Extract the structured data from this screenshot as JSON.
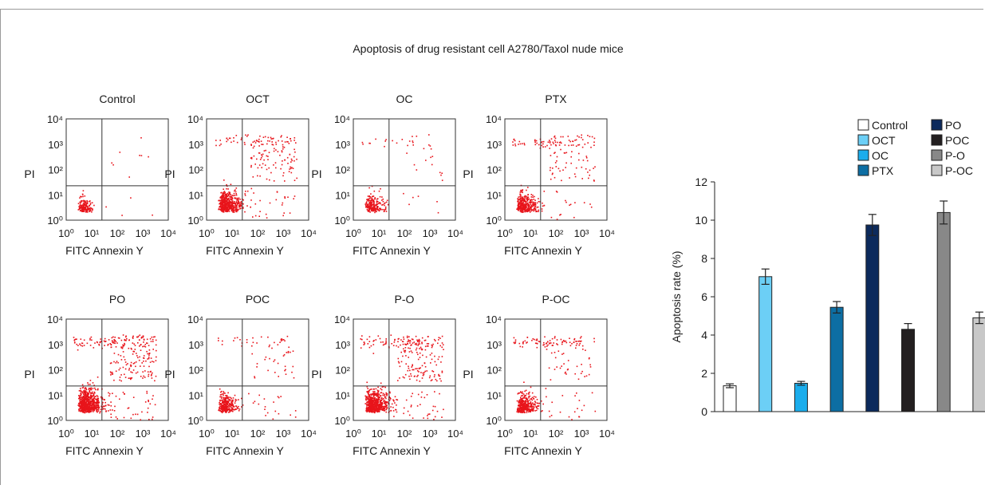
{
  "figure": {
    "title": "Apoptosis of drug resistant cell A2780/Taxol nude mice"
  },
  "flow_panels": {
    "x_axis_label": "FITC Annexin Y",
    "y_axis_label": "PI",
    "tick_labels": [
      "10⁰",
      "10¹",
      "10²",
      "10³",
      "10⁴"
    ],
    "point_color": "#e8141b",
    "panels": [
      {
        "title": "Control"
      },
      {
        "title": "OCT"
      },
      {
        "title": "OC"
      },
      {
        "title": "PTX"
      },
      {
        "title": "PO"
      },
      {
        "title": "POC"
      },
      {
        "title": "P-O"
      },
      {
        "title": "P-OC"
      }
    ]
  },
  "chart_data": {
    "type": "bar",
    "title": "",
    "xlabel": "",
    "ylabel": "Apoptosis rate (%)",
    "ylim": [
      0,
      12
    ],
    "yticks": [
      0,
      2,
      4,
      6,
      8,
      10,
      12
    ],
    "categories": [
      "Control",
      "OCT",
      "OC",
      "PTX",
      "PO",
      "POC",
      "P-O",
      "P-OC"
    ],
    "values": [
      1.35,
      7.05,
      1.48,
      5.45,
      9.75,
      4.3,
      10.4,
      4.9
    ],
    "errors": [
      0.1,
      0.4,
      0.1,
      0.3,
      0.55,
      0.3,
      0.6,
      0.3
    ],
    "colors": [
      "#ffffff",
      "#6ccff6",
      "#1badec",
      "#0d6ea3",
      "#0c2a5c",
      "#231f20",
      "#888888",
      "#c8c8c8"
    ],
    "legend": {
      "placement": "top-right",
      "entries": [
        "Control",
        "OCT",
        "OC",
        "PTX",
        "PO",
        "POC",
        "P-O",
        "P-OC"
      ]
    }
  }
}
